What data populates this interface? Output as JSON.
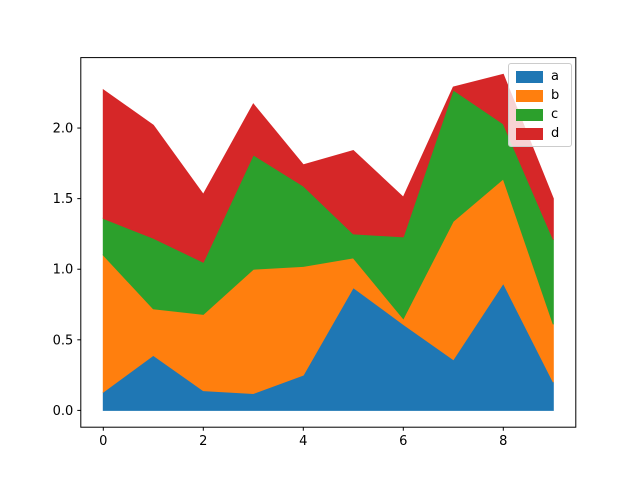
{
  "chart_data": {
    "type": "area",
    "stacked": true,
    "x": [
      0,
      1,
      2,
      3,
      4,
      5,
      6,
      7,
      8,
      9
    ],
    "series": [
      {
        "name": "a",
        "color": "#1f77b4",
        "values": [
          0.13,
          0.39,
          0.14,
          0.12,
          0.25,
          0.87,
          0.61,
          0.36,
          0.9,
          0.2
        ]
      },
      {
        "name": "b",
        "color": "#ff7f0e",
        "values": [
          0.97,
          0.33,
          0.54,
          0.88,
          0.77,
          0.21,
          0.04,
          0.98,
          0.74,
          0.41
        ]
      },
      {
        "name": "c",
        "color": "#2ca02c",
        "values": [
          0.26,
          0.5,
          0.37,
          0.81,
          0.57,
          0.17,
          0.58,
          0.93,
          0.39,
          0.6
        ]
      },
      {
        "name": "d",
        "color": "#d62728",
        "values": [
          0.91,
          0.8,
          0.48,
          0.36,
          0.15,
          0.59,
          0.28,
          0.02,
          0.35,
          0.29
        ]
      }
    ],
    "cumulative_totals": [
      2.27,
      2.02,
      1.53,
      2.17,
      1.74,
      1.84,
      1.51,
      2.29,
      2.38,
      1.5
    ],
    "xticks": [
      0,
      2,
      4,
      6,
      8
    ],
    "xtick_labels": [
      "0",
      "2",
      "4",
      "6",
      "8"
    ],
    "yticks": [
      0.0,
      0.5,
      1.0,
      1.5,
      2.0
    ],
    "ytick_labels": [
      "0.0",
      "0.5",
      "1.0",
      "1.5",
      "2.0"
    ],
    "xlim": [
      -0.45,
      9.45
    ],
    "ylim": [
      -0.119,
      2.499
    ],
    "grid": false,
    "legend": {
      "position": "upper right",
      "labels": [
        "a",
        "b",
        "c",
        "d"
      ]
    }
  }
}
